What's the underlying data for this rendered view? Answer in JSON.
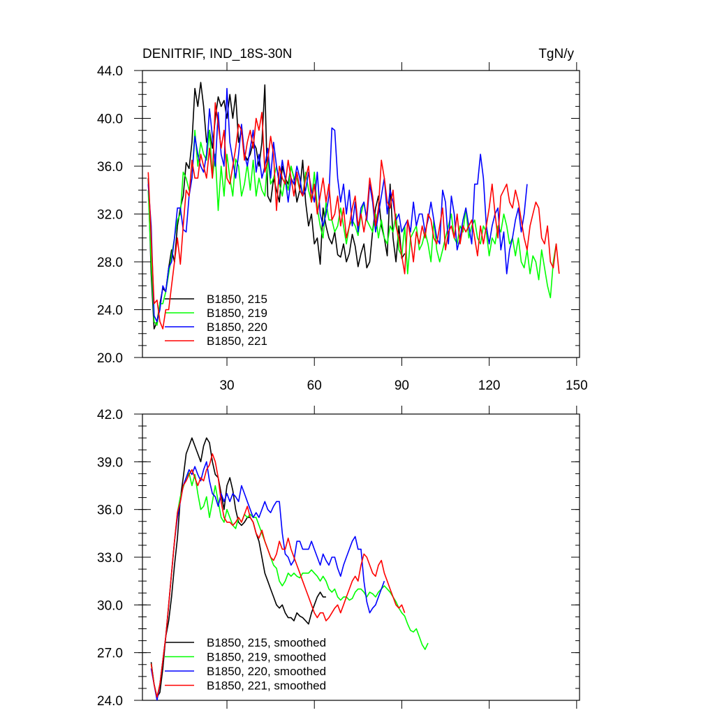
{
  "chart_data": [
    {
      "type": "line",
      "title": "DENITRIF, IND_18S-30N",
      "units": "TgN/y",
      "xlabel": "",
      "ylabel": "",
      "xlim": [
        1,
        151
      ],
      "ylim": [
        20,
        44
      ],
      "xticks": [
        30,
        60,
        90,
        120,
        150
      ],
      "xtick_labels": [
        "30",
        "60",
        "90",
        "120",
        "150"
      ],
      "yticks": [
        20,
        24,
        28,
        32,
        36,
        40,
        44
      ],
      "ytick_labels": [
        "20.0",
        "24.0",
        "28.0",
        "32.0",
        "36.0",
        "40.0",
        "44.0"
      ],
      "legend_position": "bottom-left",
      "series": [
        {
          "name": "B1850, 215",
          "color": "#000000",
          "x_start": 3,
          "values": [
            35,
            27,
            22.4,
            23,
            24.5,
            25.8,
            25.5,
            27.5,
            29,
            28,
            31,
            32.5,
            33.5,
            36.3,
            35.8,
            38,
            42.5,
            41,
            43,
            41,
            38,
            39,
            37.5,
            40,
            41.8,
            41,
            41.5,
            40,
            42,
            40,
            42,
            38,
            39,
            37,
            36.5,
            37,
            38,
            37.5,
            36,
            38,
            42.8,
            33.5,
            33,
            35,
            34,
            33,
            36,
            35,
            34.5,
            36,
            35,
            33,
            34,
            36.5,
            33,
            31,
            32,
            29.5,
            30,
            27.8,
            32.5,
            31,
            30,
            29.5,
            30.5,
            28.6,
            28.4,
            29.5,
            28,
            28.7,
            30.3,
            29.3,
            27.6,
            28.7,
            29.5,
            27.5,
            28,
            30.6,
            32.5,
            33.5,
            31,
            30,
            28.5,
            34.5,
            30,
            28,
            31,
            28.3,
            28.7
          ]
        },
        {
          "name": "B1850, 219",
          "color": "#00ff00",
          "x_start": 3,
          "values": [
            34,
            28,
            23,
            22.7,
            24.5,
            24.5,
            25.5,
            27,
            28.5,
            30,
            31.5,
            32,
            35.5,
            35,
            34,
            35,
            39,
            36,
            38,
            37,
            36.5,
            39,
            35,
            37,
            32.3,
            36,
            33.5,
            37,
            35,
            33.5,
            36.6,
            36,
            33.5,
            34.5,
            36.2,
            34,
            36.5,
            33.5,
            35,
            34,
            33.5,
            36.7,
            34.5,
            35,
            36,
            34.5,
            33.5,
            35,
            34,
            36,
            35,
            35,
            34,
            33.5,
            35.5,
            34,
            33,
            35.5,
            32.5,
            31,
            30,
            33,
            31.5,
            31.5,
            30.5,
            31,
            32.5,
            31,
            29.5,
            31,
            31.5,
            31,
            30.2,
            32,
            33,
            31.5,
            31,
            30.5,
            32,
            30,
            31.5,
            30,
            29.5,
            31,
            30.5,
            32,
            29,
            28.5,
            31,
            27,
            30,
            30.5,
            31,
            29,
            29.5,
            30.5,
            29.5,
            28,
            31.5,
            29,
            28,
            29,
            30,
            31,
            32,
            30,
            29.5,
            31,
            30.5,
            32.5,
            30,
            31,
            31.5,
            30,
            29.5,
            31,
            30.5,
            28.5,
            30,
            29.5,
            31,
            30.5,
            32,
            31,
            29.5,
            30,
            28.5,
            30,
            28,
            27.5,
            29,
            27,
            28.5,
            28,
            26.5,
            29,
            27.5,
            26,
            25,
            28,
            29.5
          ]
        },
        {
          "name": "B1850, 220",
          "color": "#0000ff",
          "x_start": 3,
          "values": [
            34.5,
            31,
            23.5,
            23,
            24,
            26,
            25.5,
            27.5,
            28,
            30,
            32.5,
            32.5,
            30.7,
            30.5,
            33.5,
            35,
            38.5,
            37,
            36,
            35.5,
            37,
            40.8,
            38.5,
            36,
            40.5,
            37,
            36,
            42.5,
            38,
            36.5,
            35,
            37,
            39.5,
            37,
            36,
            37.5,
            39,
            35.5,
            37,
            35,
            36,
            37.5,
            35,
            38,
            36,
            34.5,
            36.5,
            35,
            33,
            35,
            34.5,
            36,
            35,
            33.5,
            34,
            35.5,
            34,
            33,
            35.5,
            32,
            31,
            32,
            33.5,
            39.2,
            39,
            35,
            33,
            34.5,
            32,
            34,
            31,
            33,
            30.5,
            32.5,
            33,
            31.5,
            34.5,
            33,
            30.5,
            32,
            33.5,
            35,
            32,
            34,
            33,
            31.5,
            32,
            30.5,
            31,
            31.5,
            30.5,
            33,
            31,
            32,
            32,
            30.5,
            31.5,
            33,
            31.5,
            30,
            29.5,
            34,
            33,
            29.5,
            33.5,
            32,
            29,
            30,
            31.5,
            32.5,
            31,
            29.5,
            34.5,
            34.5,
            37,
            35,
            31,
            29.5,
            31,
            32,
            32.5,
            29,
            30.5,
            27,
            29,
            30,
            31.5,
            32.5,
            30.5,
            32,
            34.5
          ]
        },
        {
          "name": "B1850, 221",
          "color": "#ff0000",
          "x_start": 3,
          "values": [
            35.5,
            30,
            24.5,
            24.8,
            23,
            22.4,
            24,
            24,
            26,
            28,
            30,
            27.8,
            31,
            34,
            33.5,
            36.5,
            35,
            35,
            37,
            36,
            35,
            37.5,
            35,
            41.3,
            39.5,
            37.5,
            39,
            35,
            34.5,
            36,
            37.5,
            39.5,
            39,
            36.5,
            38,
            39,
            37.5,
            40,
            39,
            40.5,
            35.5,
            36.5,
            38.5,
            37,
            32.3,
            36,
            35,
            34.5,
            36.5,
            35,
            33.5,
            35.5,
            34,
            33.5,
            35,
            36,
            33,
            34.5,
            32,
            33.5,
            35,
            33,
            34.5,
            31.5,
            32,
            33.5,
            31,
            32.5,
            30,
            31,
            32.5,
            33.5,
            31,
            32,
            30.5,
            32,
            35,
            33.5,
            31,
            32.5,
            36.5,
            35,
            33,
            32.5,
            34,
            31,
            30,
            28.5,
            27,
            31.5,
            30,
            28,
            30.5,
            29.5,
            31,
            30,
            32,
            31.5,
            30,
            29.5,
            31,
            32.5,
            29,
            30.5,
            31,
            30,
            32,
            29.5,
            31,
            30.5,
            31,
            31.5,
            30,
            28.5,
            31,
            29.5,
            31,
            32.5,
            34.5,
            32,
            30,
            33.5,
            34,
            34.5,
            33,
            32.5,
            34,
            33,
            31.5,
            30,
            29,
            31,
            32,
            33,
            32.5,
            30,
            29.5,
            31,
            28,
            27.5,
            29.5,
            27
          ]
        }
      ]
    },
    {
      "type": "line",
      "title": "",
      "xlabel": "",
      "ylabel": "",
      "xlim": [
        1,
        151
      ],
      "ylim": [
        24,
        42
      ],
      "xticks": [
        30,
        60,
        90,
        120,
        150
      ],
      "yticks": [
        24,
        27,
        30,
        33,
        36,
        39,
        42
      ],
      "ytick_labels": [
        "24.0",
        "27.0",
        "30.0",
        "33.0",
        "36.0",
        "39.0",
        "42.0"
      ],
      "legend_position": "bottom-left",
      "series": [
        {
          "name": "B1850, 215, smoothed",
          "color": "#000000",
          "x_start": 4,
          "values": [
            26.4,
            25,
            24.2,
            24.5,
            26,
            28,
            29,
            30.5,
            32.5,
            34.2,
            36.7,
            38,
            39.5,
            40,
            40.5,
            40,
            39.5,
            39,
            40,
            40.5,
            40.2,
            39,
            38.2,
            38,
            37,
            36,
            37.5,
            38,
            37.2,
            36,
            35.2,
            35,
            35.2,
            35.5,
            35.5,
            35.2,
            34.5,
            34,
            33,
            32,
            31.5,
            31,
            30.5,
            30,
            29.8,
            30,
            29.5,
            29.2,
            29.2,
            29,
            29.5,
            29.3,
            29.2,
            29,
            28.8,
            29.5,
            30,
            30.5,
            30.8,
            30.5,
            30.5
          ]
        },
        {
          "name": "B1850, 219, smoothed",
          "color": "#00ff00",
          "x_start": 4,
          "values": [
            26.3,
            25,
            24.2,
            25,
            26.5,
            28,
            30,
            32,
            34,
            35.8,
            36.8,
            37.4,
            38,
            38.3,
            37.5,
            38.2,
            37,
            36,
            36.2,
            36.8,
            35.5,
            36.5,
            37.5,
            36.5,
            35.5,
            35.2,
            36,
            35.5,
            35,
            34.8,
            35.5,
            35.2,
            35.7,
            35.5,
            35.7,
            35.5,
            35.5,
            35,
            34.5,
            34,
            33.5,
            33,
            32.5,
            32.3,
            31.5,
            31.2,
            31.5,
            32,
            31.8,
            32,
            31.8,
            31.7,
            32,
            32,
            32,
            32.2,
            32,
            31.8,
            31.5,
            31.8,
            31.5,
            31,
            30.8,
            31,
            30.5,
            30.3,
            30.5,
            30.5,
            30.3,
            30.4,
            30.8,
            31,
            31,
            30.8,
            30.5,
            30.8,
            30.7,
            30.5,
            30.8,
            31,
            31.2,
            31,
            30.8,
            30.5,
            30.2,
            29.8,
            29.5,
            29.3,
            28.8,
            28.4,
            28.3,
            28.5,
            28,
            27.5,
            27.2,
            27.6
          ]
        },
        {
          "name": "B1850, 220, smoothed",
          "color": "#0000ff",
          "x_start": 4,
          "values": [
            26,
            25,
            24,
            25,
            26.5,
            28,
            30,
            32,
            34,
            35.5,
            36.5,
            37.5,
            38,
            38.5,
            38.2,
            38.7,
            38.2,
            37.8,
            38.5,
            39,
            37.8,
            37,
            36.8,
            36.2,
            37,
            36.5,
            37,
            36.5,
            37,
            36.8,
            36.5,
            37.5,
            37,
            36.5,
            36,
            35.5,
            35.8,
            35.5,
            36,
            36.5,
            36,
            35.8,
            36.2,
            36.5,
            36.5,
            34.5,
            33.2,
            33,
            32.5,
            32.8,
            34,
            34,
            33.5,
            33.5,
            33.5,
            34,
            33.5,
            33,
            32.5,
            33.2,
            32.8,
            32.5,
            33,
            33,
            32.3,
            31.8,
            32.5,
            33,
            33.5,
            34,
            34.3,
            33.5,
            33.5,
            31.5,
            30.2,
            29.5,
            29.8,
            30,
            30.5,
            31,
            31.5
          ]
        },
        {
          "name": "B1850, 221, smoothed",
          "color": "#ff0000",
          "x_start": 4,
          "values": [
            26.3,
            25,
            24.2,
            25,
            26.5,
            28,
            30,
            32,
            34,
            35.8,
            36.5,
            37.5,
            37.8,
            38.2,
            38.5,
            38,
            37.5,
            38,
            37.8,
            38.5,
            38.8,
            39.5,
            39,
            38,
            36.5,
            35.5,
            35.2,
            35.2,
            35,
            35.2,
            35.5,
            35.2,
            35.7,
            36.2,
            35.5,
            35.2,
            34.5,
            34.2,
            34.7,
            34,
            33.5,
            33,
            32.8,
            33.2,
            34,
            33.5,
            33.5,
            34.2,
            33.5,
            33,
            32.5,
            32,
            31.5,
            31,
            30.5,
            30,
            29.5,
            29.2,
            29.5,
            29.5,
            29,
            29.2,
            29.5,
            29.8,
            30,
            29.5,
            30,
            30.5,
            31,
            31.5,
            31.8,
            31.5,
            32.5,
            33.2,
            33,
            32.5,
            32,
            31.8,
            32.5,
            32.8,
            32,
            31.5,
            31,
            30.5,
            30,
            29.8,
            30,
            29.5
          ]
        }
      ]
    }
  ]
}
